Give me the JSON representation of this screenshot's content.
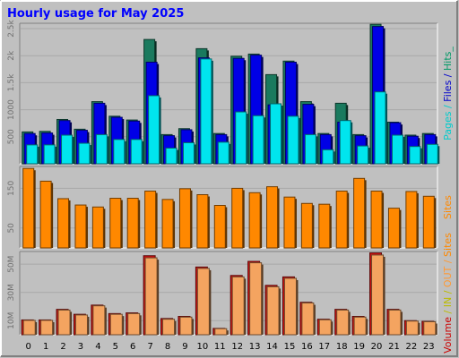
{
  "chart_data": {
    "type": "bar",
    "title": "Hourly usage for May 2025",
    "categories": [
      "0",
      "1",
      "2",
      "3",
      "4",
      "5",
      "6",
      "7",
      "8",
      "9",
      "10",
      "11",
      "12",
      "13",
      "14",
      "15",
      "16",
      "17",
      "18",
      "19",
      "20",
      "21",
      "22",
      "23"
    ],
    "panels": [
      {
        "name": "pages-files-hits",
        "ylim": [
          0,
          2600
        ],
        "yticks": [
          500,
          1000,
          1500,
          2000,
          2500
        ],
        "ytick_labels": [
          "500",
          "1000",
          "1.5k",
          "2k",
          "2.5k"
        ],
        "side_label_parts": [
          {
            "text": "Pages",
            "color": "#00cccc"
          },
          {
            "text": " / ",
            "color": "#00cccc"
          },
          {
            "text": "Files",
            "color": "#0000cc"
          },
          {
            "text": " / ",
            "color": "#0000cc"
          },
          {
            "text": "Hits_",
            "color": "#009966"
          }
        ],
        "series": [
          {
            "name": "Hits",
            "color": "#1a7a5e",
            "values": [
              590,
              600,
              820,
              640,
              1150,
              880,
              810,
              2300,
              540,
              650,
              2130,
              560,
              1990,
              2030,
              1650,
              1900,
              1150,
              560,
              1120,
              540,
              2580,
              770,
              530,
              560
            ]
          },
          {
            "name": "Files",
            "color": "#0000e6",
            "values": [
              560,
              570,
              800,
              620,
              1120,
              860,
              790,
              1880,
              520,
              630,
              1960,
              540,
              1950,
              2010,
              1090,
              1880,
              1100,
              540,
              770,
              520,
              2540,
              760,
              510,
              540
            ]
          },
          {
            "name": "Pages",
            "color": "#00e5ee",
            "values": [
              350,
              350,
              530,
              380,
              540,
              450,
              450,
              1260,
              290,
              390,
              1940,
              400,
              960,
              890,
              1110,
              880,
              540,
              260,
              800,
              330,
              1330,
              530,
              320,
              360
            ]
          }
        ]
      },
      {
        "name": "sites",
        "ylim": [
          0,
          205
        ],
        "yticks": [
          50,
          150
        ],
        "ytick_labels": [
          "50",
          "150"
        ],
        "side_label_parts": [
          {
            "text": "Sites",
            "color": "#ff8800"
          }
        ],
        "series": [
          {
            "name": "Sites",
            "color": "#ff8800",
            "values": [
              200,
              168,
              124,
              108,
              103,
              125,
              125,
              143,
              122,
              149,
              134,
              107,
              150,
              139,
              154,
              128,
              112,
              110,
              143,
              175,
              143,
              100,
              142,
              130
            ]
          }
        ]
      },
      {
        "name": "volume",
        "ylim": [
          0,
          59
        ],
        "yticks": [
          10,
          30,
          50
        ],
        "ytick_labels": [
          "10M",
          "30M",
          "50M"
        ],
        "side_label_parts": [
          {
            "text": "Volume",
            "color": "#cc0000"
          },
          {
            "text": " / ",
            "color": "#bbbb00"
          },
          {
            "text": "IN",
            "color": "#bbbb00"
          },
          {
            "text": " / ",
            "color": "#bbbb00"
          },
          {
            "text": "OUT",
            "color": "#ff9933"
          },
          {
            "text": " / ",
            "color": "#ff9933"
          },
          {
            "text": "Sites",
            "color": "#ff8800"
          }
        ],
        "series": [
          {
            "name": "Volume",
            "color": "#cc1111",
            "values": [
              10.5,
              10.5,
              18,
              14.5,
              21,
              15,
              15.5,
              56,
              11.5,
              13,
              48,
              4.5,
              42,
              52,
              35,
              41,
              23,
              11,
              18,
              13,
              58,
              18,
              10,
              9.5
            ]
          },
          {
            "name": "OUT",
            "color": "#f4a460",
            "values": [
              10.2,
              10.2,
              17.5,
              14,
              20.5,
              14.5,
              15,
              54.5,
              11,
              12.5,
              47,
              4.3,
              41,
              51,
              34,
              40,
              22.5,
              10.6,
              17.5,
              12.5,
              56.5,
              17.5,
              9.7,
              9.2
            ]
          }
        ]
      }
    ],
    "grid": true,
    "legend": "right-side-vertical"
  },
  "colors": {
    "background": "#c0c0c0",
    "plot_background": "#c0c0c0",
    "title": "#0000ff",
    "grid": "#a8a8a8",
    "border_dark": "#808080",
    "border_light": "#ffffff"
  }
}
